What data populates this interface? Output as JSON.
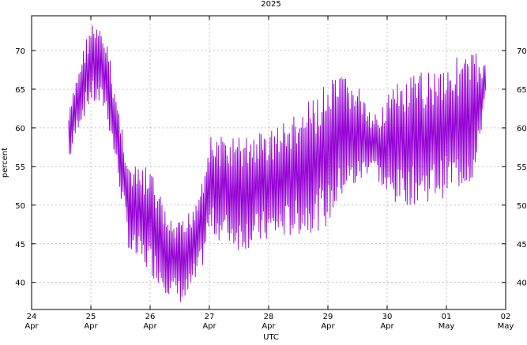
{
  "chart_data": {
    "type": "line",
    "title": "2025",
    "xlabel": "UTC",
    "ylabel": "percent",
    "x_tick_labels": [
      {
        "day": "24",
        "month": "Apr"
      },
      {
        "day": "25",
        "month": "Apr"
      },
      {
        "day": "26",
        "month": "Apr"
      },
      {
        "day": "27",
        "month": "Apr"
      },
      {
        "day": "28",
        "month": "Apr"
      },
      {
        "day": "29",
        "month": "Apr"
      },
      {
        "day": "30",
        "month": "Apr"
      },
      {
        "day": "01",
        "month": "May"
      },
      {
        "day": "02",
        "month": "May"
      }
    ],
    "xlim": [
      "2025-04-24T00:00",
      "2025-05-02T00:00"
    ],
    "ylim": [
      36.5,
      74.5
    ],
    "y_ticks": [
      40,
      45,
      50,
      55,
      60,
      65,
      70
    ],
    "grid": true,
    "series": [
      {
        "color": "#9400d3",
        "envelope": [
          {
            "x": "2025-04-24T15:00",
            "low": 55,
            "high": 62
          },
          {
            "x": "2025-04-24T19:00",
            "low": 60,
            "high": 68
          },
          {
            "x": "2025-04-25T00:00",
            "low": 63,
            "high": 74
          },
          {
            "x": "2025-04-25T06:00",
            "low": 62,
            "high": 72
          },
          {
            "x": "2025-04-25T10:00",
            "low": 55,
            "high": 65
          },
          {
            "x": "2025-04-25T16:00",
            "low": 43,
            "high": 55
          },
          {
            "x": "2025-04-26T00:00",
            "low": 41,
            "high": 55
          },
          {
            "x": "2025-04-26T08:00",
            "low": 38,
            "high": 48
          },
          {
            "x": "2025-04-26T14:00",
            "low": 37,
            "high": 48
          },
          {
            "x": "2025-04-26T20:00",
            "low": 40,
            "high": 53
          },
          {
            "x": "2025-04-27T00:00",
            "low": 46,
            "high": 59
          },
          {
            "x": "2025-04-27T12:00",
            "low": 44,
            "high": 59
          },
          {
            "x": "2025-04-28T00:00",
            "low": 45,
            "high": 60
          },
          {
            "x": "2025-04-28T12:00",
            "low": 46,
            "high": 62
          },
          {
            "x": "2025-04-29T00:00",
            "low": 47,
            "high": 66
          },
          {
            "x": "2025-04-29T06:00",
            "low": 51,
            "high": 67
          },
          {
            "x": "2025-04-29T12:00",
            "low": 52,
            "high": 66
          },
          {
            "x": "2025-04-29T18:00",
            "low": 55,
            "high": 61
          },
          {
            "x": "2025-04-30T00:00",
            "low": 50,
            "high": 65
          },
          {
            "x": "2025-04-30T12:00",
            "low": 50,
            "high": 67
          },
          {
            "x": "2025-05-01T00:00",
            "low": 51,
            "high": 69
          },
          {
            "x": "2025-05-01T12:00",
            "low": 53,
            "high": 70
          },
          {
            "x": "2025-05-01T16:00",
            "low": 65,
            "high": 68
          }
        ]
      }
    ]
  }
}
